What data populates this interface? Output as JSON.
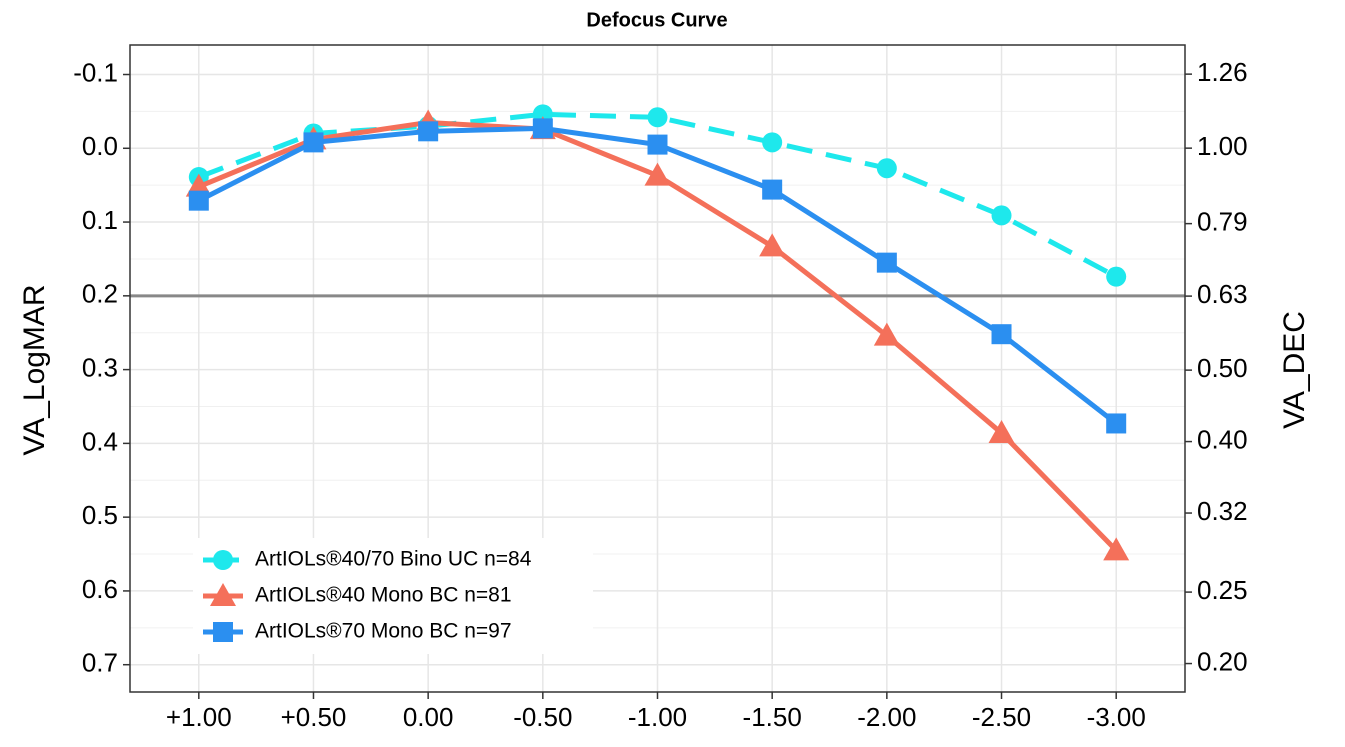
{
  "chart_data": {
    "type": "line",
    "title": "Defocus Curve",
    "categories": [
      "+1.00",
      "+0.50",
      "0.00",
      "-0.50",
      "-1.00",
      "-1.50",
      "-2.00",
      "-2.50",
      "-3.00"
    ],
    "series": [
      {
        "name": "ArtIOLs®40/70 Bino UC n=84",
        "color": "#1ee8ec",
        "marker": "circle",
        "dash": true,
        "values": [
          0.039,
          -0.02,
          -0.03,
          -0.046,
          -0.042,
          -0.008,
          0.027,
          0.091,
          0.174
        ]
      },
      {
        "name": "ArtIOLs®40 Mono BC n=81",
        "color": "#f4705a",
        "marker": "triangle",
        "dash": false,
        "values": [
          0.052,
          -0.012,
          -0.035,
          -0.026,
          0.037,
          0.133,
          0.254,
          0.386,
          0.545
        ]
      },
      {
        "name": "ArtIOLs®70 Mono BC n=97",
        "color": "#2b8ff0",
        "marker": "square",
        "dash": false,
        "values": [
          0.071,
          -0.008,
          -0.023,
          -0.027,
          -0.005,
          0.056,
          0.155,
          0.252,
          0.373
        ]
      }
    ],
    "ylabel": "VA_LogMAR",
    "y2label": "VA_DEC",
    "ylim": [
      -0.14,
      0.737
    ],
    "y_reversed": true,
    "yticks": [
      -0.1,
      {
        "value": 0,
        "label": "0.0"
      },
      0.1,
      0.2,
      0.3,
      0.4,
      0.5,
      0.6,
      0.7
    ],
    "y2lim": [
      1.38,
      0.183
    ],
    "y2_log": true,
    "y2ticks": [
      1.26,
      {
        "value": 1,
        "label": "1.00"
      },
      0.79,
      0.63,
      {
        "value": 0.5,
        "label": "0.50"
      },
      {
        "value": 0.4,
        "label": "0.40"
      },
      0.32,
      0.25,
      {
        "value": 0.2,
        "label": "0.20"
      }
    ],
    "hline": 0.2,
    "grid": true,
    "legend": "bottom-left"
  }
}
